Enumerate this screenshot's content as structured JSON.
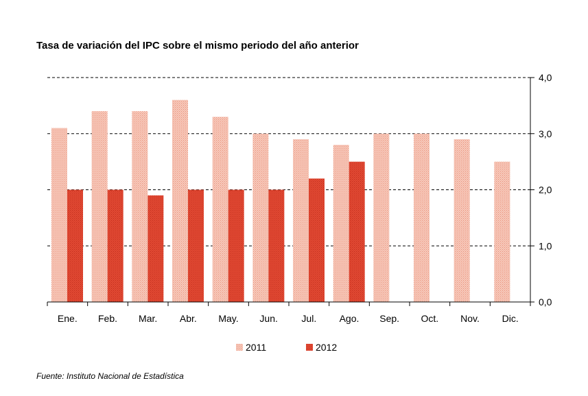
{
  "title": "Tasa de variación del IPC sobre el mismo periodo del año anterior",
  "source": "Fuente: Instituto Nacional de Estadística",
  "colors": {
    "2011": "#f4b9a8",
    "2012": "#e0402c"
  },
  "chart_data": {
    "type": "bar",
    "categories": [
      "Ene.",
      "Feb.",
      "Mar.",
      "Abr.",
      "May.",
      "Jun.",
      "Jul.",
      "Ago.",
      "Sep.",
      "Oct.",
      "Nov.",
      "Dic."
    ],
    "series": [
      {
        "name": "2011",
        "values": [
          3.1,
          3.4,
          3.4,
          3.6,
          3.3,
          3.0,
          2.9,
          2.8,
          3.0,
          3.0,
          2.9,
          2.5
        ]
      },
      {
        "name": "2012",
        "values": [
          2.0,
          2.0,
          1.9,
          2.0,
          2.0,
          2.0,
          2.2,
          2.5,
          null,
          null,
          null,
          null
        ]
      }
    ],
    "ylim": [
      0,
      4
    ],
    "yticks": [
      "0,0",
      "1,0",
      "2,0",
      "3,0",
      "4,0"
    ],
    "grid": true,
    "y_axis_side": "right",
    "legend_position": "bottom"
  }
}
